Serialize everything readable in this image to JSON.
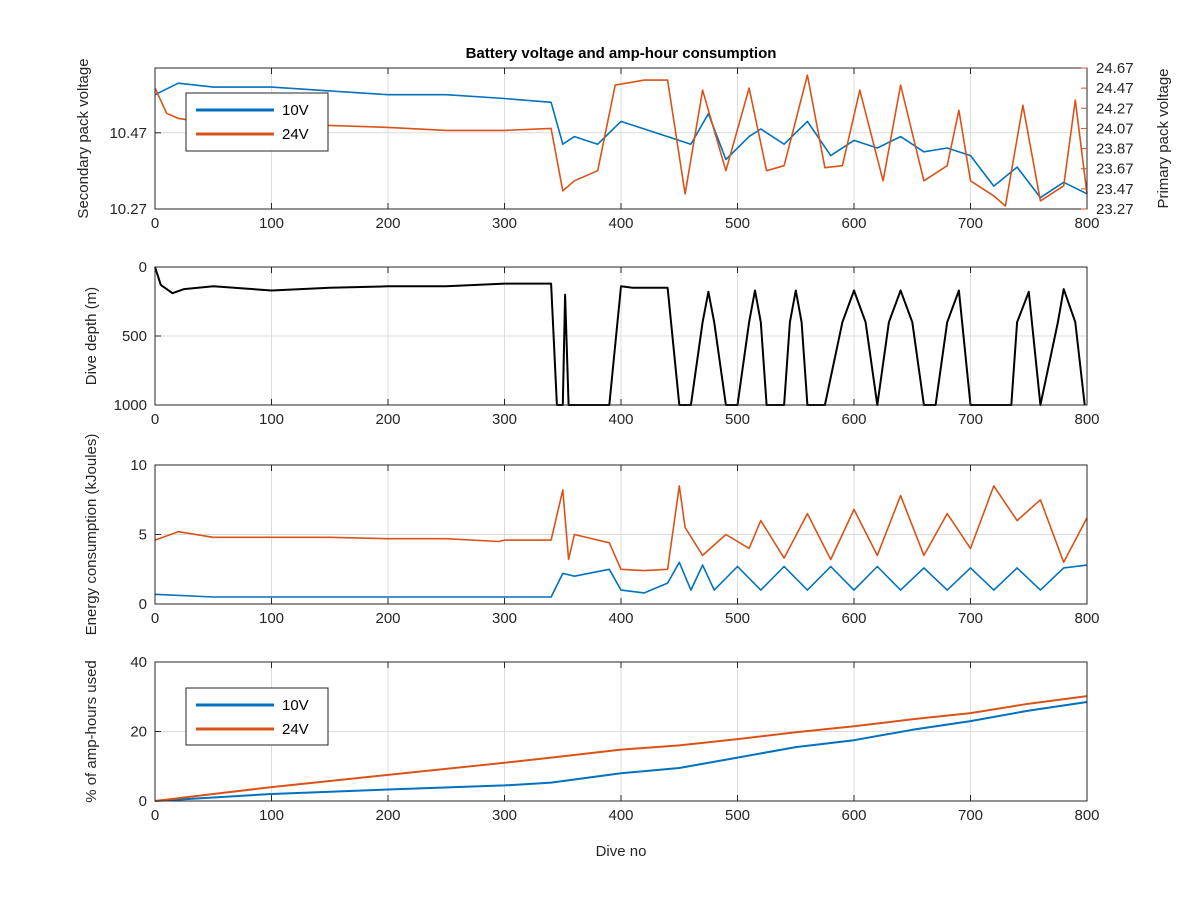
{
  "figure_title": "Battery voltage and amp-hour consumption",
  "x_label_bottom": "Dive no",
  "colors": {
    "blue": "#0072BD",
    "orange": "#D95319",
    "black": "#000000",
    "grid": "#dcdcdc"
  },
  "chart_data": [
    {
      "type": "line",
      "title": "Battery voltage and amp-hour consumption",
      "xlim": [
        0,
        800
      ],
      "xticks": [
        0,
        100,
        200,
        300,
        400,
        500,
        600,
        700,
        800
      ],
      "grid": true,
      "ylabel_left": "Secondary pack voltage",
      "ylim_left": [
        10.27,
        10.64
      ],
      "yticks_left": [
        10.27,
        10.47
      ],
      "ylabel_right": "Primary pack voltage",
      "ylim_right": [
        23.27,
        24.67
      ],
      "yticks_right": [
        23.27,
        23.47,
        23.67,
        23.87,
        24.07,
        24.27,
        24.47,
        24.67
      ],
      "legend": {
        "placement": "top-left",
        "entries": [
          "10V",
          "24V"
        ]
      },
      "series": [
        {
          "name": "10V",
          "axis": "left",
          "color": "#0072BD",
          "x": [
            0,
            20,
            50,
            100,
            150,
            200,
            250,
            300,
            340,
            350,
            360,
            380,
            400,
            420,
            440,
            460,
            475,
            490,
            510,
            520,
            540,
            560,
            580,
            600,
            620,
            640,
            660,
            680,
            700,
            720,
            740,
            760,
            780,
            800
          ],
          "y": [
            10.57,
            10.6,
            10.59,
            10.59,
            10.58,
            10.57,
            10.57,
            10.56,
            10.55,
            10.44,
            10.46,
            10.44,
            10.5,
            10.48,
            10.46,
            10.44,
            10.52,
            10.4,
            10.46,
            10.48,
            10.44,
            10.5,
            10.41,
            10.45,
            10.43,
            10.46,
            10.42,
            10.43,
            10.41,
            10.33,
            10.38,
            10.3,
            10.34,
            10.31
          ]
        },
        {
          "name": "24V",
          "axis": "right",
          "color": "#D95319",
          "x": [
            0,
            10,
            20,
            50,
            100,
            150,
            200,
            250,
            300,
            340,
            350,
            360,
            380,
            395,
            420,
            440,
            455,
            470,
            490,
            510,
            525,
            540,
            560,
            575,
            590,
            605,
            625,
            640,
            660,
            680,
            690,
            700,
            720,
            730,
            745,
            760,
            780,
            790,
            800
          ],
          "y": [
            24.47,
            24.22,
            24.17,
            24.12,
            24.12,
            24.1,
            24.08,
            24.05,
            24.05,
            24.07,
            23.45,
            23.55,
            23.65,
            24.5,
            24.55,
            24.55,
            23.42,
            24.45,
            23.65,
            24.47,
            23.65,
            23.7,
            24.6,
            23.68,
            23.7,
            24.45,
            23.55,
            24.5,
            23.55,
            23.7,
            24.25,
            23.55,
            23.4,
            23.3,
            24.3,
            23.35,
            23.5,
            24.35,
            23.42
          ]
        }
      ]
    },
    {
      "type": "line",
      "xlim": [
        0,
        800
      ],
      "xticks": [
        0,
        100,
        200,
        300,
        400,
        500,
        600,
        700,
        800
      ],
      "grid": true,
      "ylabel": "Dive depth (m)",
      "ylim": [
        0,
        1000
      ],
      "y_reversed": true,
      "yticks": [
        0,
        500,
        1000
      ],
      "series": [
        {
          "name": "",
          "color": "#000000",
          "x": [
            0,
            5,
            15,
            25,
            50,
            100,
            150,
            200,
            250,
            300,
            340,
            345,
            350,
            352,
            355,
            360,
            390,
            400,
            410,
            440,
            450,
            460,
            470,
            475,
            480,
            490,
            500,
            510,
            515,
            520,
            525,
            530,
            540,
            545,
            550,
            555,
            560,
            565,
            575,
            590,
            600,
            610,
            620,
            630,
            640,
            650,
            660,
            670,
            680,
            690,
            700,
            735,
            740,
            750,
            760,
            775,
            780,
            790,
            798
          ],
          "y": [
            0,
            130,
            190,
            160,
            140,
            170,
            150,
            140,
            140,
            120,
            120,
            1000,
            1000,
            200,
            1000,
            1000,
            1000,
            140,
            150,
            150,
            1000,
            1000,
            400,
            180,
            400,
            1000,
            1000,
            400,
            170,
            400,
            1000,
            1000,
            1000,
            400,
            170,
            400,
            1000,
            1000,
            1000,
            400,
            170,
            400,
            1000,
            400,
            170,
            400,
            1000,
            1000,
            400,
            170,
            1000,
            1000,
            400,
            180,
            1000,
            400,
            160,
            400,
            1000
          ]
        }
      ]
    },
    {
      "type": "line",
      "xlim": [
        0,
        800
      ],
      "xticks": [
        0,
        100,
        200,
        300,
        400,
        500,
        600,
        700,
        800
      ],
      "grid": true,
      "ylabel": "Energy consumption (kJoules)",
      "ylim": [
        0,
        10
      ],
      "yticks": [
        0,
        5,
        10
      ],
      "series": [
        {
          "name": "10V",
          "color": "#0072BD",
          "x": [
            0,
            50,
            100,
            150,
            200,
            250,
            295,
            300,
            340,
            350,
            360,
            390,
            400,
            420,
            440,
            450,
            460,
            470,
            480,
            500,
            520,
            540,
            560,
            580,
            600,
            620,
            640,
            660,
            680,
            700,
            720,
            740,
            760,
            780,
            800
          ],
          "y": [
            0.7,
            0.5,
            0.5,
            0.5,
            0.5,
            0.5,
            0.5,
            0.5,
            0.5,
            2.2,
            2.0,
            2.5,
            1.0,
            0.8,
            1.5,
            3.0,
            1.0,
            2.8,
            1.0,
            2.7,
            1.0,
            2.7,
            1.0,
            2.7,
            1.0,
            2.7,
            1.0,
            2.6,
            1.0,
            2.6,
            1.0,
            2.6,
            1.0,
            2.6,
            2.8
          ]
        },
        {
          "name": "24V",
          "color": "#D95319",
          "x": [
            0,
            20,
            50,
            100,
            150,
            200,
            250,
            295,
            300,
            340,
            350,
            355,
            360,
            390,
            400,
            420,
            440,
            450,
            455,
            470,
            490,
            510,
            520,
            540,
            560,
            580,
            600,
            620,
            640,
            660,
            680,
            700,
            720,
            740,
            760,
            780,
            800
          ],
          "y": [
            4.6,
            5.2,
            4.8,
            4.8,
            4.8,
            4.7,
            4.7,
            4.5,
            4.6,
            4.6,
            8.2,
            3.2,
            5.0,
            4.4,
            2.5,
            2.4,
            2.5,
            8.5,
            5.5,
            3.5,
            5.0,
            4.0,
            6.0,
            3.3,
            6.5,
            3.2,
            6.8,
            3.5,
            7.8,
            3.5,
            6.5,
            4.0,
            8.5,
            6.0,
            7.5,
            3.0,
            6.2
          ]
        }
      ]
    },
    {
      "type": "line",
      "xlim": [
        0,
        800
      ],
      "xticks": [
        0,
        100,
        200,
        300,
        400,
        500,
        600,
        700,
        800
      ],
      "grid": true,
      "xlabel": "Dive no",
      "ylabel": "% of amp-hours used",
      "ylim": [
        0,
        40
      ],
      "yticks": [
        0,
        20,
        40
      ],
      "legend": {
        "placement": "top-left",
        "entries": [
          "10V",
          "24V"
        ]
      },
      "series": [
        {
          "name": "10V",
          "color": "#0072BD",
          "x": [
            0,
            50,
            100,
            200,
            300,
            340,
            400,
            450,
            500,
            550,
            600,
            650,
            700,
            750,
            800
          ],
          "y": [
            0,
            1.0,
            2.0,
            3.3,
            4.5,
            5.3,
            8.0,
            9.5,
            12.5,
            15.5,
            17.5,
            20.5,
            23.0,
            26.0,
            28.5
          ]
        },
        {
          "name": "24V",
          "color": "#D95319",
          "x": [
            0,
            50,
            100,
            200,
            300,
            340,
            400,
            450,
            500,
            550,
            600,
            650,
            700,
            750,
            800
          ],
          "y": [
            0,
            2.0,
            4.0,
            7.5,
            11.0,
            12.5,
            14.8,
            16.0,
            17.8,
            19.8,
            21.5,
            23.5,
            25.3,
            28.0,
            30.2
          ]
        }
      ]
    }
  ]
}
